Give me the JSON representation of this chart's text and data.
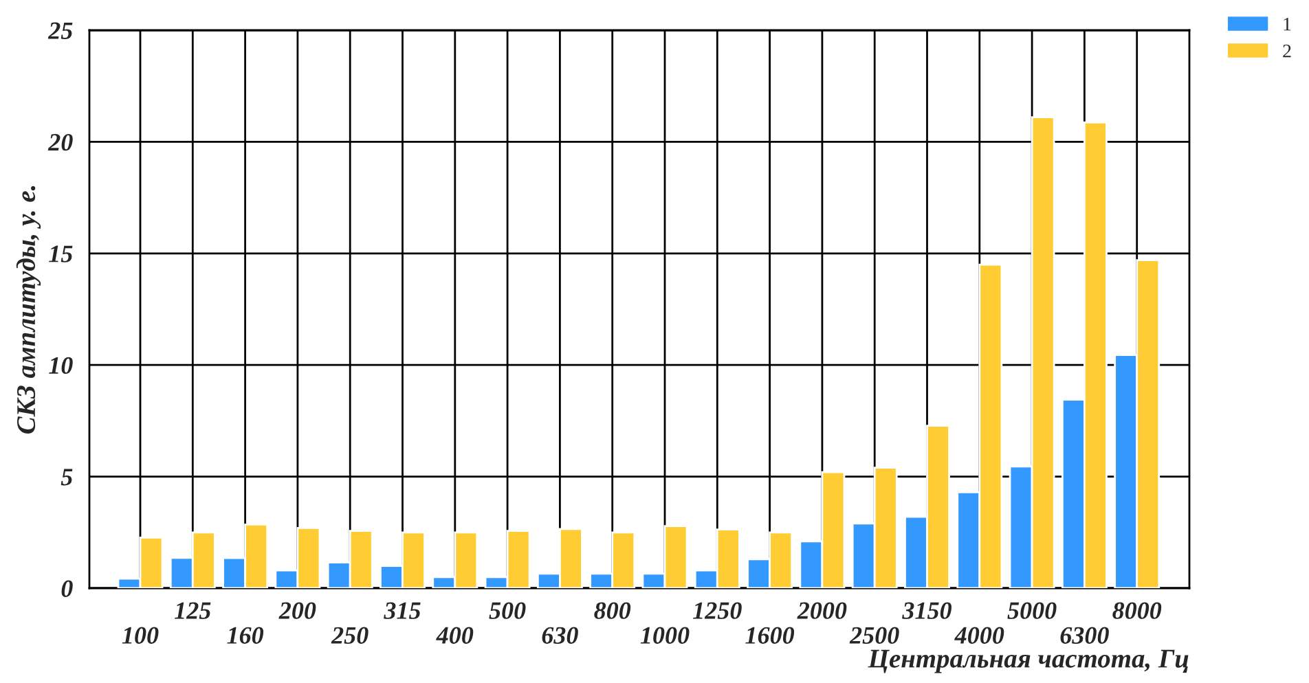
{
  "chart_data": {
    "type": "bar",
    "xlabel": "Центральная частота, Гц",
    "ylabel": "СКЗ амплитуды, у. е.",
    "categories": [
      "100",
      "125",
      "160",
      "200",
      "250",
      "315",
      "400",
      "500",
      "630",
      "800",
      "1000",
      "1250",
      "1600",
      "2000",
      "2500",
      "3150",
      "4000",
      "5000",
      "6300",
      "8000"
    ],
    "series": [
      {
        "name": "1",
        "color": "#3399ff",
        "values": [
          0.43,
          1.36,
          1.35,
          0.8,
          1.15,
          1.0,
          0.5,
          0.5,
          0.65,
          0.65,
          0.65,
          0.8,
          1.3,
          2.1,
          2.9,
          3.2,
          4.3,
          5.45,
          8.45,
          10.45
        ]
      },
      {
        "name": "2",
        "color": "#ffcc33",
        "values": [
          2.27,
          2.5,
          2.85,
          2.7,
          2.57,
          2.5,
          2.5,
          2.57,
          2.65,
          2.5,
          2.78,
          2.63,
          2.5,
          5.2,
          5.4,
          7.28,
          14.5,
          21.1,
          20.87,
          14.7
        ]
      }
    ],
    "ylim": [
      0,
      25
    ],
    "yticks": [
      0,
      5,
      10,
      15,
      20,
      25
    ],
    "grid": true,
    "legend": "top right"
  }
}
